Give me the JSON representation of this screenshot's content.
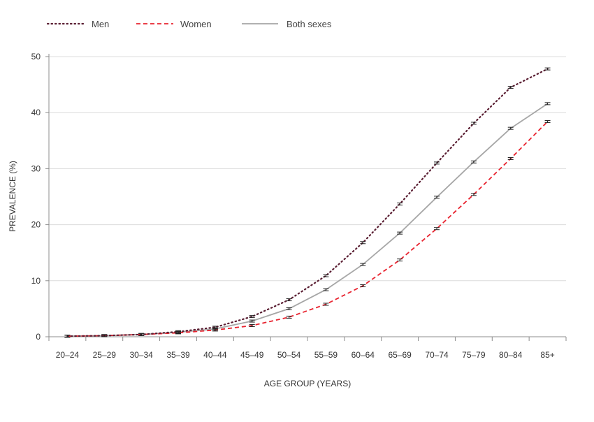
{
  "chart_data": {
    "type": "line",
    "title": "",
    "xlabel": "AGE GROUP (YEARS)",
    "ylabel": "PREVALENCE (%)",
    "categories": [
      "20–24",
      "25–29",
      "30–34",
      "35–39",
      "40–44",
      "45–49",
      "50–54",
      "55–59",
      "60–64",
      "65–69",
      "70–74",
      "75–79",
      "80–84",
      "85+"
    ],
    "ylim": [
      0,
      50
    ],
    "yticks": [
      0,
      10,
      20,
      30,
      40,
      50
    ],
    "grid": true,
    "legend_position": "top-left",
    "series": [
      {
        "name": "Men",
        "style": "dotted",
        "color": "#5a1e32",
        "values": [
          0.1,
          0.2,
          0.4,
          0.9,
          1.7,
          3.6,
          6.6,
          10.9,
          16.8,
          23.7,
          31.0,
          38.1,
          44.5,
          47.8
        ]
      },
      {
        "name": "Women",
        "style": "dashed",
        "color": "#e8232f",
        "values": [
          0.1,
          0.2,
          0.4,
          0.7,
          1.2,
          2.0,
          3.5,
          5.8,
          9.1,
          13.7,
          19.3,
          25.4,
          31.8,
          38.4
        ]
      },
      {
        "name": "Both sexes",
        "style": "solid",
        "color": "#a6a6a6",
        "values": [
          0.1,
          0.2,
          0.4,
          0.8,
          1.4,
          2.8,
          5.0,
          8.4,
          12.9,
          18.5,
          24.9,
          31.2,
          37.2,
          41.6
        ]
      }
    ]
  }
}
